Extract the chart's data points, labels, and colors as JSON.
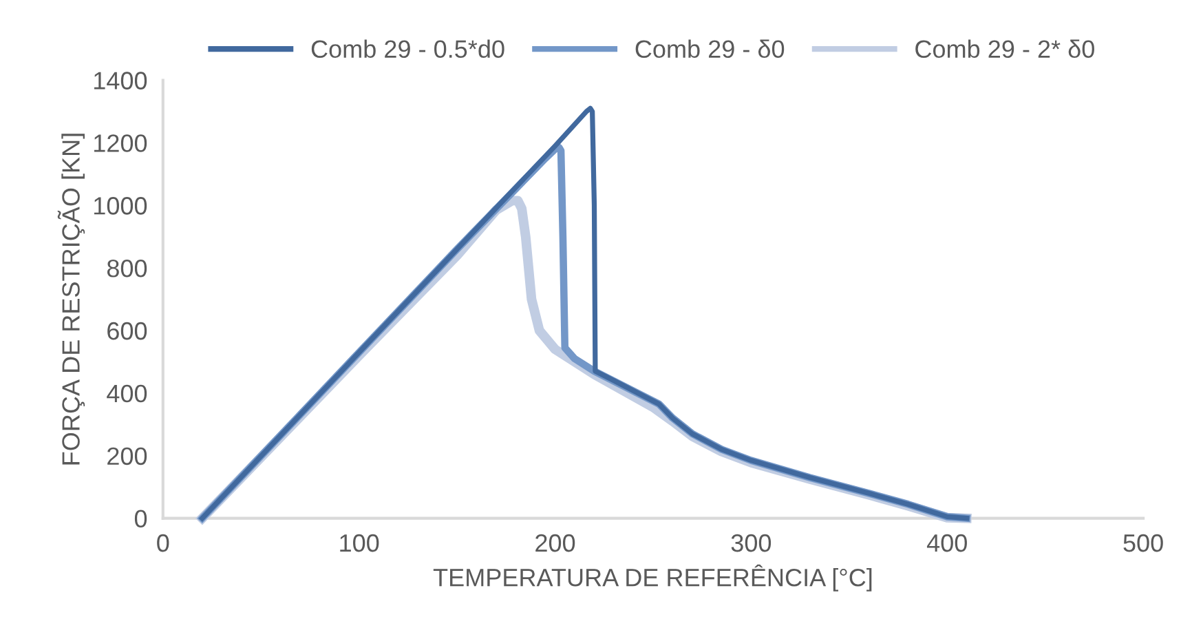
{
  "chart_data": {
    "type": "line",
    "xlabel": "TEMPERATURA DE REFERÊNCIA [°C]",
    "ylabel": "FORÇA DE RESTRIÇÃO [KN]",
    "xlim": [
      0,
      500
    ],
    "ylim": [
      0,
      1400
    ],
    "xticks": [
      0,
      100,
      200,
      300,
      400,
      500
    ],
    "yticks": [
      0,
      200,
      400,
      600,
      800,
      1000,
      1200,
      1400
    ],
    "grid": false,
    "legend": "top",
    "marker": "none",
    "line_style": "solid",
    "series": [
      {
        "name": "Comb 29 - 0.5*d0",
        "color": "#41699e",
        "x": [
          20,
          100,
          150,
          200,
          216,
          218,
          219,
          220,
          220.5,
          230,
          253,
          260,
          270,
          285,
          300,
          330,
          360,
          380,
          400,
          410
        ],
        "values": [
          0,
          530,
          860,
          1190,
          1300,
          1310,
          1300,
          1000,
          470,
          440,
          365,
          320,
          270,
          220,
          185,
          130,
          80,
          45,
          5,
          0
        ]
      },
      {
        "name": "Comb 29 - δ0",
        "color": "#7397c8",
        "x": [
          20,
          100,
          150,
          195,
          200,
          202,
          203,
          204,
          205,
          210,
          220,
          253,
          260,
          270,
          285,
          300,
          330,
          360,
          380,
          400,
          410
        ],
        "values": [
          0,
          530,
          860,
          1150,
          1180,
          1185,
          1175,
          900,
          545,
          510,
          470,
          365,
          320,
          270,
          220,
          185,
          130,
          80,
          45,
          5,
          0
        ]
      },
      {
        "name": "Comb 29 - 2* δ0",
        "color": "#c1cde3",
        "x": [
          20,
          100,
          150,
          170,
          178,
          181,
          183,
          185,
          188,
          192,
          200,
          220,
          250,
          260,
          270,
          285,
          300,
          330,
          360,
          380,
          400,
          410
        ],
        "values": [
          0,
          520,
          840,
          985,
          1015,
          1015,
          990,
          900,
          700,
          600,
          540,
          460,
          355,
          310,
          262,
          213,
          178,
          125,
          75,
          40,
          2,
          0
        ]
      }
    ]
  }
}
